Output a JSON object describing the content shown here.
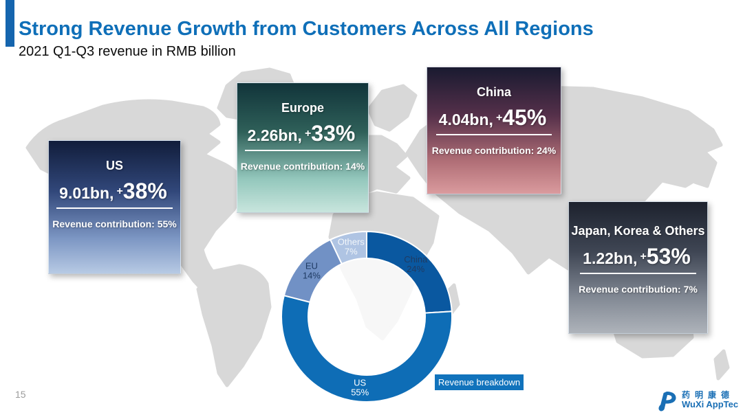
{
  "slide": {
    "title": "Strong Revenue Growth from Customers Across All Regions",
    "subtitle": "2021 Q1-Q3 revenue in RMB billion",
    "page_number": "15",
    "title_color": "#0F6FB8",
    "accent_bar_color": "#1565AE"
  },
  "cards": [
    {
      "region": "US",
      "value": "9.01bn,",
      "plus": "+",
      "growth": "38%",
      "contribution": "Revenue contribution: 55%",
      "gradient_colors": [
        "#111D3B",
        "#31477A",
        "#7D97C4",
        "#B7CAE4"
      ]
    },
    {
      "region": "Europe",
      "value": "2.26bn,",
      "plus": "+",
      "growth": "33%",
      "contribution": "Revenue contribution: 14%",
      "gradient_colors": [
        "#11343A",
        "#2F6059",
        "#93C7BC",
        "#C8E5DD"
      ]
    },
    {
      "region": "China",
      "value": "4.04bn,",
      "plus": "+",
      "growth": "45%",
      "contribution": "Revenue contribution: 24%",
      "gradient_colors": [
        "#191A30",
        "#55304A",
        "#B06E76",
        "#DA9B9E"
      ]
    },
    {
      "region": "Japan, Korea & Others",
      "value": "1.22bn,",
      "plus": "+",
      "growth": "53%",
      "contribution": "Revenue contribution: 7%",
      "gradient_colors": [
        "#1D222E",
        "#3F4654",
        "#848B96",
        "#AEB3BA"
      ]
    }
  ],
  "chart_data": {
    "type": "pie",
    "donut": true,
    "title": "Revenue breakdown",
    "start_angle_deg": 0,
    "direction": "clockwise",
    "legend_position": "labels-on-slices",
    "segments": [
      {
        "label": "China",
        "value": 24,
        "color": "#0A58A0",
        "label_color": "#1F3B63"
      },
      {
        "label": "US",
        "value": 55,
        "color": "#0E6DB6",
        "label_color": "#FFFFFF"
      },
      {
        "label": "EU",
        "value": 14,
        "color": "#7191C5",
        "label_color": "#1F3B63"
      },
      {
        "label": "Others",
        "value": 7,
        "color": "#AFC4E3",
        "label_color": "#F2F6FA"
      }
    ]
  },
  "legend": {
    "label": "Revenue breakdown",
    "bg_color": "#1173BC",
    "text_color": "#FFFFFF"
  },
  "logo": {
    "chinese": "药明康德",
    "english": "WuXi AppTec",
    "color": "#1A6FB5"
  }
}
